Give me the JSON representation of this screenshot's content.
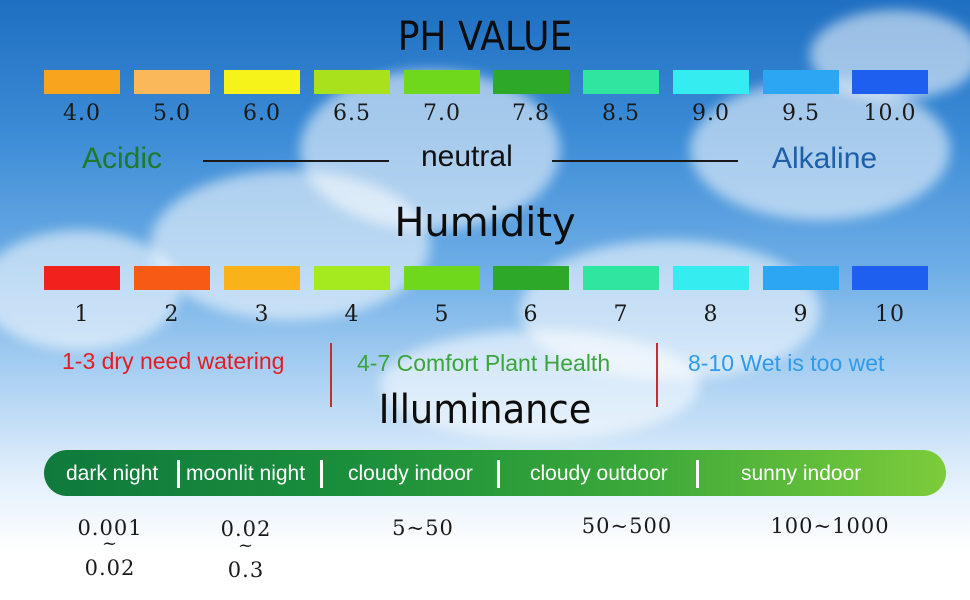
{
  "ph": {
    "title": "PH VALUE",
    "scale": [
      {
        "value": "4.0",
        "color": "#f8a41f"
      },
      {
        "value": "5.0",
        "color": "#fbb859"
      },
      {
        "value": "6.0",
        "color": "#f5f31a"
      },
      {
        "value": "6.5",
        "color": "#a9e21c"
      },
      {
        "value": "7.0",
        "color": "#6fd81d"
      },
      {
        "value": "7.8",
        "color": "#2ea829"
      },
      {
        "value": "8.5",
        "color": "#2fe6a1"
      },
      {
        "value": "9.0",
        "color": "#35ecf0"
      },
      {
        "value": "9.5",
        "color": "#2aa6f2"
      },
      {
        "value": "10.0",
        "color": "#1f5ff0"
      }
    ],
    "acidic": "Acidic",
    "neutral": "neutral",
    "alkaline": "Alkaline"
  },
  "humidity": {
    "title": "Humidity",
    "scale": [
      {
        "value": "1",
        "color": "#f0221d"
      },
      {
        "value": "2",
        "color": "#f65a14"
      },
      {
        "value": "3",
        "color": "#f9b21a"
      },
      {
        "value": "4",
        "color": "#a5ea1e"
      },
      {
        "value": "5",
        "color": "#6fd81d"
      },
      {
        "value": "6",
        "color": "#2ea829"
      },
      {
        "value": "7",
        "color": "#2fe6a1"
      },
      {
        "value": "8",
        "color": "#35ecf0"
      },
      {
        "value": "9",
        "color": "#2aa6f2"
      },
      {
        "value": "10",
        "color": "#1f5ff0"
      }
    ],
    "dry": "1-3 dry need watering",
    "comfort": "4-7 Comfort Plant Health",
    "wet": "8-10 Wet is too wet"
  },
  "illuminance": {
    "title": "Illuminance",
    "segments": [
      "dark night",
      "moonlit night",
      "cloudy indoor",
      "cloudy outdoor",
      "sunny indoor"
    ],
    "ranges": {
      "dark_top": "0.001",
      "dark_tilde": "~",
      "dark_bottom": "0.02",
      "moon_top": "0.02",
      "moon_tilde": "~",
      "moon_bottom": "0.3",
      "cloudy_indoor": "5~50",
      "cloudy_outdoor": "50~500",
      "sunny_indoor": "100~1000"
    }
  },
  "colors": {
    "acidic": "#1e7a2a",
    "alkaline": "#1d5fa8",
    "dry": "#e21d24",
    "comfort": "#3aa53a",
    "wet": "#2f9be8"
  }
}
